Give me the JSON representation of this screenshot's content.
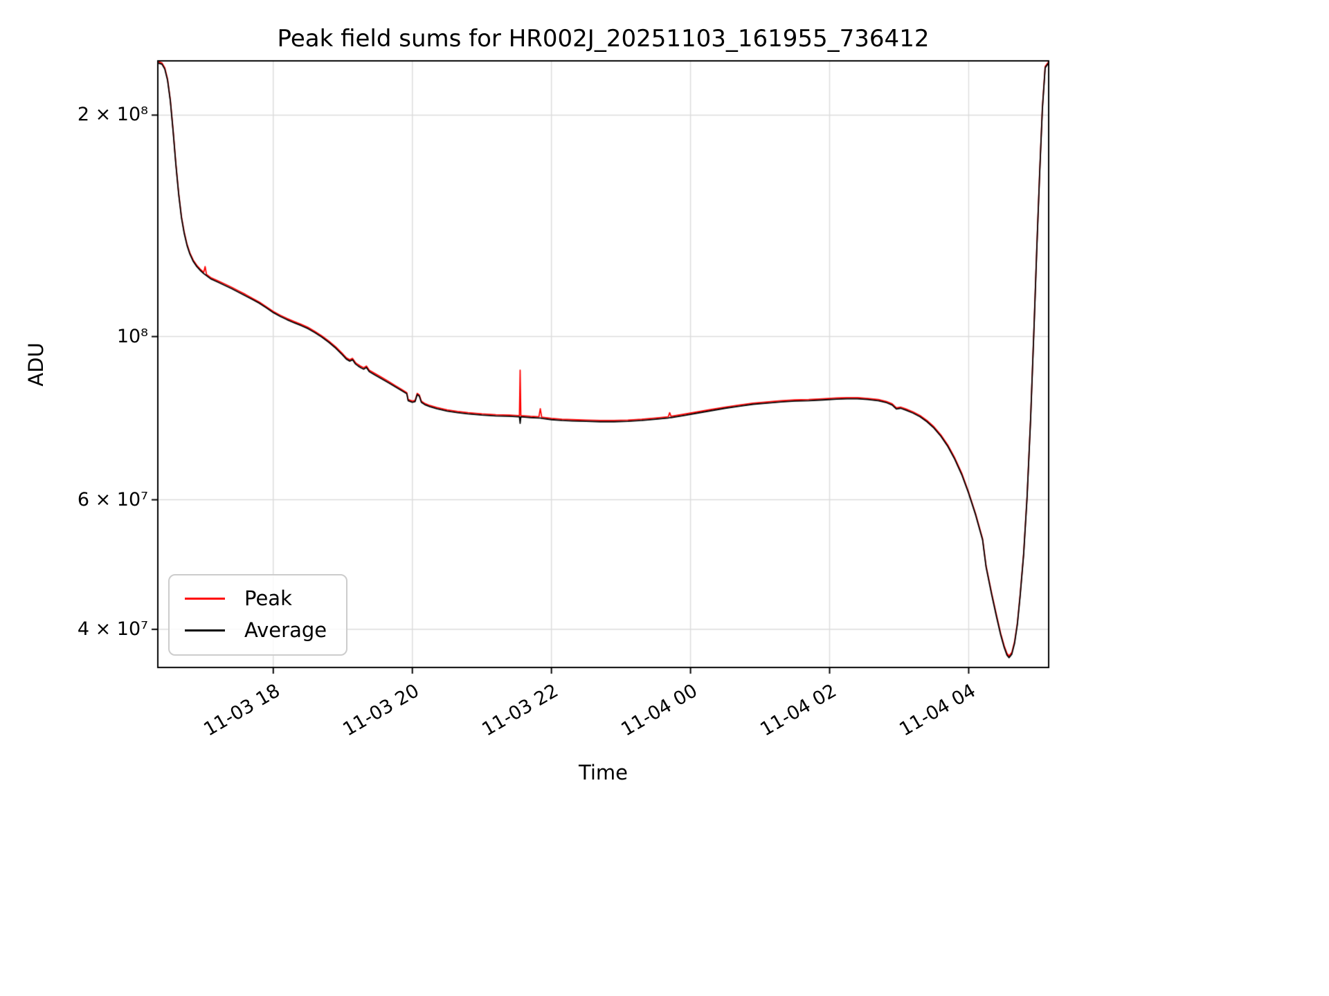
{
  "figure": {
    "title": "Peak field sums for HR002J_20251103_161955_736412",
    "xlabel": "Time",
    "ylabel": "ADU"
  },
  "legend": {
    "position": "lower left",
    "entries": [
      {
        "label": "Peak",
        "color": "#ff0000"
      },
      {
        "label": "Average",
        "color": "#000000"
      }
    ]
  },
  "chart_data": {
    "type": "line",
    "title": "Peak field sums for HR002J_20251103_161955_736412",
    "xlabel": "Time",
    "ylabel": "ADU",
    "y_scale": "log",
    "grid": true,
    "x_unit": "decimal hours since 2025-11-03 00:00",
    "xlim": [
      16.34,
      29.15
    ],
    "ylim": [
      35500000,
      237000000
    ],
    "x_ticks": [
      {
        "value": 18,
        "label": "11-03 18"
      },
      {
        "value": 20,
        "label": "11-03 20"
      },
      {
        "value": 22,
        "label": "11-03 22"
      },
      {
        "value": 24,
        "label": "11-04 00"
      },
      {
        "value": 26,
        "label": "11-04 02"
      },
      {
        "value": 28,
        "label": "11-04 04"
      }
    ],
    "y_ticks": [
      {
        "value": 200000000,
        "label": "2 × 10⁸"
      },
      {
        "value": 100000000,
        "label": "10⁸"
      },
      {
        "value": 60000000,
        "label": "6 × 10⁷"
      },
      {
        "value": 40000000,
        "label": "4 × 10⁷"
      }
    ],
    "x": [
      16.34,
      16.4,
      16.44,
      16.48,
      16.52,
      16.56,
      16.6,
      16.64,
      16.68,
      16.72,
      16.76,
      16.8,
      16.85,
      16.9,
      16.95,
      17.0,
      17.02,
      17.04,
      17.1,
      17.2,
      17.3,
      17.4,
      17.5,
      17.6,
      17.7,
      17.8,
      17.9,
      18.0,
      18.1,
      18.2,
      18.3,
      18.4,
      18.5,
      18.6,
      18.7,
      18.8,
      18.9,
      19.0,
      19.05,
      19.1,
      19.14,
      19.18,
      19.22,
      19.26,
      19.3,
      19.34,
      19.38,
      19.45,
      19.55,
      19.65,
      19.75,
      19.85,
      19.92,
      19.94,
      20.0,
      20.04,
      20.07,
      20.1,
      20.13,
      20.18,
      20.25,
      20.35,
      20.5,
      20.65,
      20.8,
      21.0,
      21.2,
      21.4,
      21.52,
      21.54,
      21.55,
      21.56,
      21.7,
      21.82,
      21.84,
      21.86,
      22.0,
      22.15,
      22.3,
      22.5,
      22.7,
      22.9,
      23.1,
      23.3,
      23.5,
      23.68,
      23.7,
      23.72,
      23.9,
      24.1,
      24.3,
      24.5,
      24.7,
      24.9,
      25.1,
      25.3,
      25.5,
      25.7,
      25.9,
      26.1,
      26.25,
      26.4,
      26.55,
      26.7,
      26.82,
      26.9,
      26.96,
      27.02,
      27.1,
      27.2,
      27.3,
      27.4,
      27.5,
      27.6,
      27.7,
      27.8,
      27.9,
      28.0,
      28.1,
      28.2,
      28.25,
      28.33,
      28.4,
      28.46,
      28.51,
      28.55,
      28.58,
      28.62,
      28.66,
      28.7,
      28.74,
      28.79,
      28.84,
      28.89,
      28.94,
      28.98,
      29.02,
      29.06,
      29.1,
      29.15
    ],
    "series": [
      {
        "name": "Peak",
        "color": "#ff0000",
        "values": [
          236400000,
          235400000,
          231900000,
          223900000,
          209800000,
          190800000,
          171700000,
          156600000,
          145600000,
          138600000,
          133500000,
          130000000,
          127000000,
          125000000,
          123500000,
          122300000,
          124500000,
          121500000,
          120300000,
          119100000,
          117900000,
          116700000,
          115400000,
          114100000,
          112700000,
          111400000,
          109800000,
          108200000,
          106900000,
          105800000,
          104800000,
          103900000,
          102900000,
          101600000,
          100200000,
          98600000,
          96800000,
          94700000,
          93600000,
          93000000,
          93400000,
          92200000,
          91600000,
          91100000,
          90700000,
          91200000,
          90000000,
          89200000,
          88100000,
          87000000,
          85800000,
          84700000,
          83900000,
          82100000,
          81700000,
          81900000,
          83700000,
          83300000,
          81700000,
          81100000,
          80600000,
          80100000,
          79500000,
          79100000,
          78800000,
          78500000,
          78300000,
          78200000,
          78100000,
          78100000,
          90000000,
          78100000,
          77900000,
          77800000,
          79800000,
          77700000,
          77400000,
          77200000,
          77100000,
          77000000,
          76900000,
          76900000,
          77000000,
          77200000,
          77500000,
          77800000,
          78800000,
          77900000,
          78400000,
          79000000,
          79600000,
          80200000,
          80700000,
          81200000,
          81500000,
          81800000,
          82000000,
          82100000,
          82300000,
          82500000,
          82600000,
          82600000,
          82400000,
          82100000,
          81600000,
          81000000,
          80000000,
          80200000,
          79700000,
          79000000,
          78100000,
          76900000,
          75400000,
          73500000,
          71200000,
          68400000,
          65200000,
          61400000,
          57400000,
          53100000,
          48800000,
          44800000,
          41800000,
          39500000,
          38000000,
          37100000,
          36800000,
          37200000,
          38500000,
          40800000,
          44600000,
          50700000,
          60700000,
          77300000,
          103400000,
          132500000,
          166700000,
          204800000,
          232900000,
          236400000
        ]
      },
      {
        "name": "Average",
        "color": "#000000",
        "values": [
          235500000,
          234500000,
          231000000,
          223000000,
          209000000,
          190000000,
          171000000,
          156000000,
          145000000,
          138000000,
          133000000,
          129500000,
          126500000,
          124500000,
          123000000,
          121800000,
          121400000,
          121000000,
          119800000,
          118600000,
          117400000,
          116200000,
          114900000,
          113600000,
          112300000,
          111000000,
          109400000,
          107800000,
          106500000,
          105400000,
          104400000,
          103500000,
          102500000,
          101200000,
          99800000,
          98200000,
          96400000,
          94300000,
          93200000,
          92600000,
          93000000,
          91800000,
          91200000,
          90700000,
          90300000,
          90800000,
          89600000,
          88800000,
          87700000,
          86600000,
          85500000,
          84400000,
          83600000,
          81800000,
          81400000,
          81600000,
          83400000,
          83000000,
          81400000,
          80800000,
          80300000,
          79800000,
          79200000,
          78800000,
          78500000,
          78200000,
          78000000,
          77900000,
          77800000,
          77800000,
          76200000,
          77800000,
          77600000,
          77500000,
          77500000,
          77400000,
          77100000,
          76900000,
          76800000,
          76700000,
          76600000,
          76600000,
          76700000,
          76900000,
          77200000,
          77500000,
          77600000,
          77600000,
          78100000,
          78700000,
          79300000,
          79900000,
          80400000,
          80900000,
          81200000,
          81500000,
          81700000,
          81800000,
          82000000,
          82200000,
          82300000,
          82300000,
          82100000,
          81800000,
          81300000,
          80700000,
          79700000,
          79900000,
          79400000,
          78700000,
          77800000,
          76600000,
          75100000,
          73200000,
          70900000,
          68100000,
          64900000,
          61200000,
          57200000,
          52900000,
          48600000,
          44600000,
          41600000,
          39300000,
          37800000,
          36900000,
          36600000,
          37000000,
          38300000,
          40600000,
          44400000,
          50500000,
          60500000,
          77000000,
          103000000,
          132000000,
          166000000,
          204000000,
          232000000,
          235500000
        ]
      }
    ]
  }
}
